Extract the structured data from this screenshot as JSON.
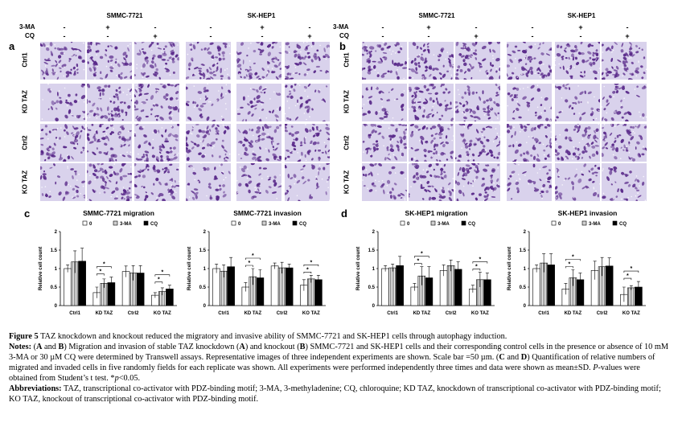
{
  "figure": {
    "cell_lines": [
      "SMMC-7721",
      "SK-HEP1"
    ],
    "treatments": [
      "3-MA",
      "CQ"
    ],
    "symbols": {
      "3-MA": [
        "-",
        "+",
        "-"
      ],
      "CQ": [
        "-",
        "-",
        "+"
      ]
    },
    "panels": [
      "a",
      "b",
      "c",
      "d"
    ],
    "row_labels": [
      "Ctrl1",
      "KD TAZ",
      "Ctrl2",
      "KO TAZ"
    ],
    "colors": {
      "tile_bg": "#d9d2ec",
      "cell": "#5a2a8a",
      "bar_black": "#000000",
      "bar_white": "#ffffff"
    }
  },
  "legend": {
    "l0": "0",
    "l1": "3-MA",
    "l2": "CQ"
  },
  "charts": [
    {
      "ttl": "SMMC-7721 migration",
      "ylabel": "Relative cell count",
      "yticks": [
        "0",
        "0.5",
        "1",
        "1.5",
        "2"
      ],
      "sig": "*"
    },
    {
      "ttl": "SMMC-7721 invasion",
      "ylabel": "Relative cell count",
      "yticks": [
        "0",
        "0.5",
        "1",
        "1.5",
        "2"
      ],
      "sig": "*"
    },
    {
      "ttl": "SK-HEP1 migration",
      "ylabel": "Relative cell count",
      "yticks": [
        "0",
        "0.5",
        "1",
        "1.5",
        "2"
      ],
      "sig": "*"
    },
    {
      "ttl": "SK-HEP1 invasion",
      "ylabel": "Relative cell count",
      "yticks": [
        "0",
        "0.5",
        "1",
        "1.5",
        "2"
      ],
      "sig": "*"
    }
  ],
  "chart_data": [
    {
      "type": "bar",
      "title": "SMMC-7721 migration",
      "ylabel": "Relative cell count",
      "ylim": [
        0,
        2
      ],
      "categories": [
        "Ctrl1",
        "KD TAZ",
        "Ctrl2",
        "KO TAZ"
      ],
      "series": [
        {
          "name": "0",
          "values": [
            1.0,
            0.35,
            0.92,
            0.28
          ],
          "errors": [
            0.1,
            0.15,
            0.15,
            0.07
          ]
        },
        {
          "name": "3-MA",
          "values": [
            1.18,
            0.6,
            0.88,
            0.38
          ],
          "errors": [
            0.3,
            0.12,
            0.2,
            0.1
          ]
        },
        {
          "name": "CQ",
          "values": [
            1.2,
            0.62,
            0.88,
            0.45
          ],
          "errors": [
            0.35,
            0.15,
            0.2,
            0.1
          ]
        }
      ],
      "significance": [
        [
          1,
          0,
          1
        ],
        [
          1,
          0,
          2
        ],
        [
          3,
          0,
          1
        ],
        [
          3,
          0,
          2
        ]
      ]
    },
    {
      "type": "bar",
      "title": "SMMC-7721 invasion",
      "ylabel": "Relative cell count",
      "ylim": [
        0,
        2
      ],
      "categories": [
        "Ctrl1",
        "KD TAZ",
        "Ctrl2",
        "KO TAZ"
      ],
      "series": [
        {
          "name": "0",
          "values": [
            1.0,
            0.5,
            1.07,
            0.55
          ],
          "errors": [
            0.12,
            0.12,
            0.08,
            0.15
          ]
        },
        {
          "name": "3-MA",
          "values": [
            0.93,
            0.78,
            1.02,
            0.72
          ],
          "errors": [
            0.17,
            0.22,
            0.15,
            0.1
          ]
        },
        {
          "name": "CQ",
          "values": [
            1.05,
            0.75,
            1.02,
            0.7
          ],
          "errors": [
            0.25,
            0.22,
            0.1,
            0.12
          ]
        }
      ],
      "significance": [
        [
          1,
          0,
          1
        ],
        [
          1,
          0,
          2
        ],
        [
          3,
          0,
          1
        ],
        [
          3,
          0,
          2
        ]
      ]
    },
    {
      "type": "bar",
      "title": "SK-HEP1 migration",
      "ylabel": "Relative cell count",
      "ylim": [
        0,
        2
      ],
      "categories": [
        "Ctrl1",
        "KD TAZ",
        "Ctrl2",
        "KO TAZ"
      ],
      "series": [
        {
          "name": "0",
          "values": [
            1.0,
            0.5,
            0.95,
            0.45
          ],
          "errors": [
            0.08,
            0.1,
            0.15,
            0.1
          ]
        },
        {
          "name": "3-MA",
          "values": [
            1.02,
            0.8,
            1.08,
            0.7
          ],
          "errors": [
            0.1,
            0.25,
            0.15,
            0.2
          ]
        },
        {
          "name": "CQ",
          "values": [
            1.08,
            0.75,
            0.98,
            0.7
          ],
          "errors": [
            0.25,
            0.3,
            0.2,
            0.18
          ]
        }
      ],
      "significance": [
        [
          1,
          0,
          1
        ],
        [
          1,
          0,
          2
        ],
        [
          3,
          0,
          1
        ],
        [
          3,
          0,
          2
        ]
      ]
    },
    {
      "type": "bar",
      "title": "SK-HEP1 invasion",
      "ylabel": "Relative cell count",
      "ylim": [
        0,
        2
      ],
      "categories": [
        "Ctrl1",
        "KD TAZ",
        "Ctrl2",
        "KO TAZ"
      ],
      "series": [
        {
          "name": "0",
          "values": [
            1.0,
            0.45,
            0.95,
            0.3
          ],
          "errors": [
            0.1,
            0.15,
            0.25,
            0.2
          ]
        },
        {
          "name": "3-MA",
          "values": [
            1.15,
            0.75,
            1.05,
            0.48
          ],
          "errors": [
            0.25,
            0.22,
            0.25,
            0.06
          ]
        },
        {
          "name": "CQ",
          "values": [
            1.1,
            0.7,
            1.07,
            0.5
          ],
          "errors": [
            0.3,
            0.18,
            0.22,
            0.15
          ]
        }
      ],
      "significance": [
        [
          1,
          0,
          1
        ],
        [
          1,
          0,
          2
        ],
        [
          3,
          0,
          1
        ],
        [
          3,
          0,
          2
        ]
      ]
    }
  ],
  "caption": {
    "fig_label": "Figure 5",
    "fig_title": " TAZ knockdown and knockout reduced the migratory and invasive ability of SMMC-7721 and SK-HEP1 cells through autophagy induction.",
    "notes_label": "Notes:",
    "notes_1": " (",
    "A": "A",
    "notes_2": " and ",
    "B": "B",
    "notes_3": ") Migration and invasion of stable TAZ knockdown (",
    "A2": "A",
    "notes_4": ") and knockout (",
    "B2": "B",
    "notes_5": ") SMMC-7721 and SK-HEP1 cells and their corresponding control cells in the presence or absence of 10 mM 3-MA or 30 µM CQ were determined by Transwell assays. Representative images of three independent experiments are shown. Scale bar =50 µm. (",
    "C": "C",
    "notes_6": " and ",
    "D": "D",
    "notes_7": ") Quantification of relative numbers of migrated and invaded cells in five randomly fields for each replicate was shown. All experiments were performed independently three times and data were shown as mean±SD. ",
    "pvalues": "P",
    "notes_8": "-values were obtained from Student’s t test. *",
    "p_lt": "p",
    "notes_9": "<0.05.",
    "abbr_label": "Abbreviations:",
    "abbr_text": " TAZ, transcriptional co-activator with PDZ-binding motif; 3-MA, 3-methyladenine; CQ, chloroquine; KD TAZ, knockdown of transcriptional co-activator with PDZ-binding motif; KO TAZ, knockout of transcriptional co-activator with PDZ-binding motif."
  }
}
